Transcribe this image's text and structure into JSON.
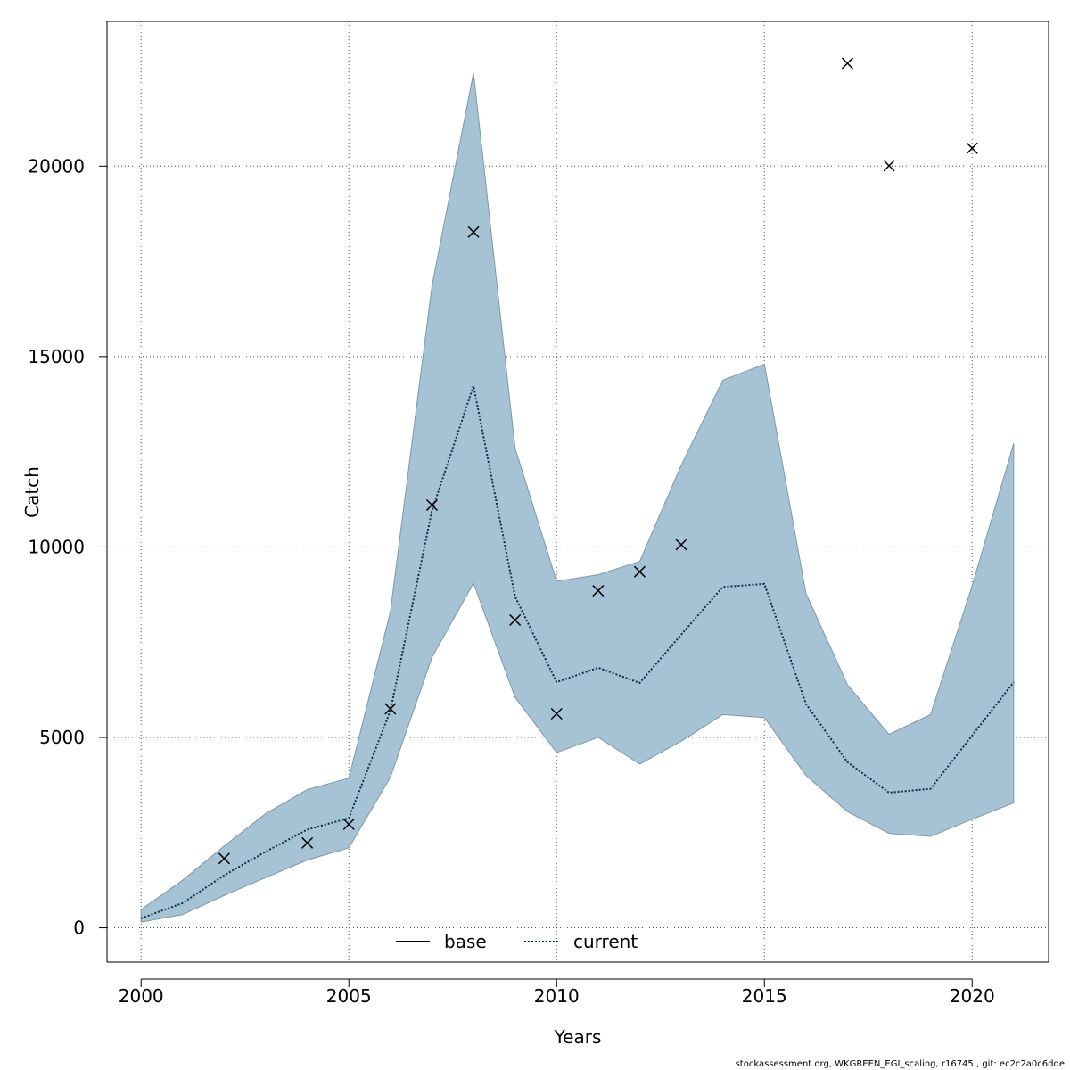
{
  "chart_data": {
    "type": "line",
    "xlabel": "Years",
    "ylabel": "Catch",
    "xlim": [
      1999.18,
      2021.84
    ],
    "ylim": [
      -900,
      23800
    ],
    "x_ticks": [
      2000,
      2005,
      2010,
      2015,
      2020
    ],
    "y_ticks": [
      0,
      5000,
      10000,
      15000,
      20000
    ],
    "grid": true,
    "legend_position": "bottom-center",
    "colors": {
      "band": "#a5c3d4",
      "band_edge": "#7e97a5",
      "current_line": "#0b2e4a",
      "marker": "#000000",
      "grid": "#555555"
    },
    "legend": [
      {
        "label": "base",
        "style": "solid"
      },
      {
        "label": "current",
        "style": "dotted"
      }
    ],
    "band": {
      "x": [
        2000,
        2001,
        2002,
        2003,
        2004,
        2005,
        2006,
        2007,
        2008,
        2009,
        2010,
        2011,
        2012,
        2013,
        2014,
        2015,
        2016,
        2017,
        2018,
        2019,
        2020,
        2021
      ],
      "lower": [
        150,
        350,
        850,
        1320,
        1780,
        2100,
        3950,
        7100,
        9050,
        6050,
        4600,
        5000,
        4300,
        4900,
        5600,
        5520,
        4000,
        3050,
        2480,
        2400,
        2850,
        3280
      ],
      "upper": [
        480,
        1250,
        2150,
        3000,
        3630,
        3930,
        8300,
        16850,
        22450,
        12600,
        9100,
        9270,
        9620,
        12150,
        14380,
        14800,
        8780,
        6380,
        5080,
        5600,
        8980,
        12720
      ]
    },
    "series": [
      {
        "name": "current",
        "x": [
          2000,
          2001,
          2002,
          2003,
          2004,
          2005,
          2006,
          2007,
          2008,
          2009,
          2010,
          2011,
          2012,
          2013,
          2014,
          2015,
          2016,
          2017,
          2018,
          2019,
          2020,
          2021
        ],
        "values": [
          250,
          650,
          1380,
          2000,
          2580,
          2880,
          5700,
          10950,
          14230,
          8700,
          6450,
          6830,
          6430,
          7700,
          8950,
          9030,
          5880,
          4350,
          3550,
          3650,
          5050,
          6450
        ]
      }
    ],
    "observations": {
      "x": [
        2002,
        2004,
        2005,
        2006,
        2007,
        2008,
        2009,
        2010,
        2011,
        2012,
        2013,
        2017,
        2018,
        2020
      ],
      "y": [
        1820,
        2230,
        2720,
        5750,
        11100,
        18270,
        8080,
        5620,
        8850,
        9350,
        10060,
        22700,
        20010,
        20470
      ]
    },
    "footer": "stockassessment.org, WKGREEN_EGI_scaling, r16745 , git: ec2c2a0c6dde"
  }
}
